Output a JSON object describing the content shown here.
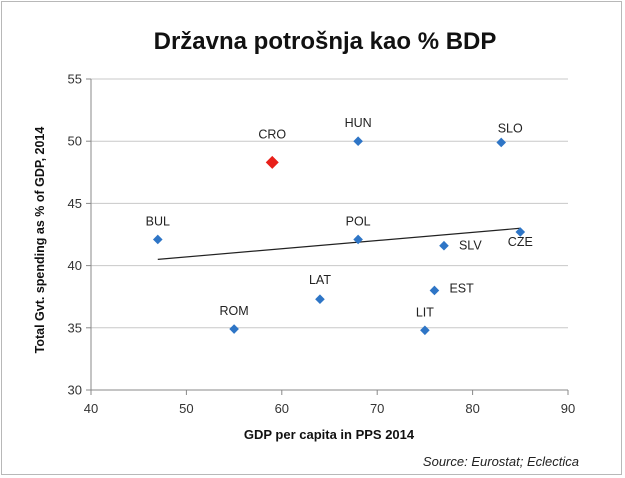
{
  "chart_data": {
    "type": "scatter",
    "title": "Državna potrošnja kao % BDP",
    "xlabel": "GDP per capita in PPS 2014",
    "ylabel": "Total Gvt. spending as % of GDP, 2014",
    "xlim": [
      40,
      90
    ],
    "ylim": [
      30,
      55
    ],
    "x_ticks": [
      "40",
      "50",
      "60",
      "70",
      "80",
      "90"
    ],
    "y_ticks": [
      "30",
      "35",
      "40",
      "45",
      "50",
      "55"
    ],
    "grid": "horizontal",
    "series": [
      {
        "color": "#2e75c6",
        "points": [
          {
            "label": "HUN",
            "x": 68,
            "y": 50.0
          },
          {
            "label": "SLO",
            "x": 83,
            "y": 49.9
          },
          {
            "label": "BUL",
            "x": 47,
            "y": 42.1
          },
          {
            "label": "POL",
            "x": 68,
            "y": 42.1
          },
          {
            "label": "SLV",
            "x": 77,
            "y": 41.6
          },
          {
            "label": "CZE",
            "x": 85,
            "y": 42.7
          },
          {
            "label": "LAT",
            "x": 64,
            "y": 37.3
          },
          {
            "label": "EST",
            "x": 76,
            "y": 38.0
          },
          {
            "label": "ROM",
            "x": 55,
            "y": 34.9
          },
          {
            "label": "LIT",
            "x": 75,
            "y": 34.8
          }
        ]
      },
      {
        "color": "#e8201a",
        "points": [
          {
            "label": "CRO",
            "x": 59,
            "y": 48.3
          }
        ]
      }
    ],
    "trendline": {
      "x": [
        47,
        85
      ],
      "y": [
        40.5,
        43.0
      ],
      "color": "#222222"
    }
  },
  "footer": {
    "source": "Source: Eurostat;  Eclectica"
  }
}
